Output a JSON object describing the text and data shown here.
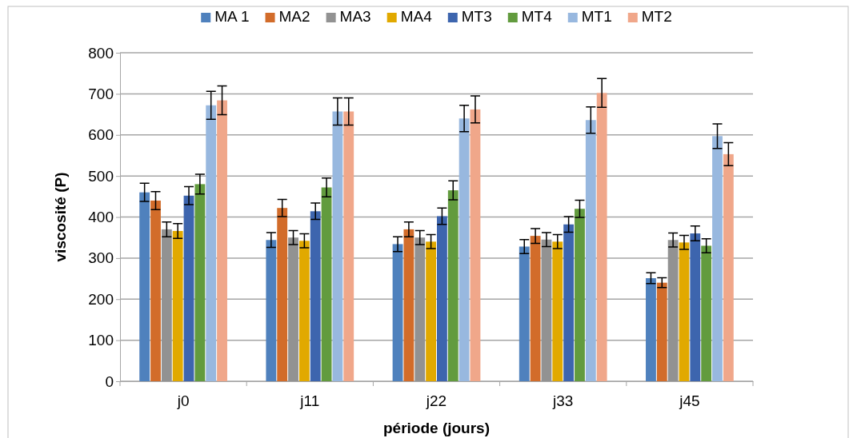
{
  "chart_data": {
    "type": "bar",
    "xlabel": "période (jours)",
    "ylabel": "viscosité (P)",
    "categories": [
      "j0",
      "j11",
      "j22",
      "j33",
      "j45"
    ],
    "ylim": [
      0,
      800
    ],
    "yticks": [
      0,
      100,
      200,
      300,
      400,
      500,
      600,
      700,
      800
    ],
    "grid": "y",
    "legend": "top",
    "series": [
      {
        "name": "MA 1",
        "color": "#4f81bd",
        "values": [
          460,
          344,
          334,
          328,
          251
        ],
        "errors": [
          22,
          18,
          18,
          17,
          13
        ]
      },
      {
        "name": "MA2",
        "color": "#d26c2a",
        "values": [
          440,
          422,
          370,
          354,
          240
        ],
        "errors": [
          22,
          21,
          18,
          18,
          12
        ]
      },
      {
        "name": "MA3",
        "color": "#929292",
        "values": [
          370,
          350,
          350,
          345,
          344
        ],
        "errors": [
          18,
          17,
          17,
          17,
          17
        ]
      },
      {
        "name": "MA4",
        "color": "#e1a900",
        "values": [
          366,
          342,
          340,
          340,
          338
        ],
        "errors": [
          18,
          17,
          17,
          17,
          17
        ]
      },
      {
        "name": "MT3",
        "color": "#3d65ae",
        "values": [
          452,
          414,
          402,
          382,
          360
        ],
        "errors": [
          22,
          20,
          20,
          19,
          18
        ]
      },
      {
        "name": "MT4",
        "color": "#629b3e",
        "values": [
          480,
          472,
          465,
          420,
          330
        ],
        "errors": [
          24,
          23,
          23,
          21,
          17
        ]
      },
      {
        "name": "MT1",
        "color": "#98b8df",
        "values": [
          672,
          657,
          640,
          636,
          597
        ],
        "errors": [
          34,
          33,
          32,
          32,
          30
        ]
      },
      {
        "name": "MT2",
        "color": "#f0a78a",
        "values": [
          684,
          657,
          662,
          702,
          553
        ],
        "errors": [
          35,
          33,
          33,
          35,
          28
        ]
      }
    ]
  }
}
